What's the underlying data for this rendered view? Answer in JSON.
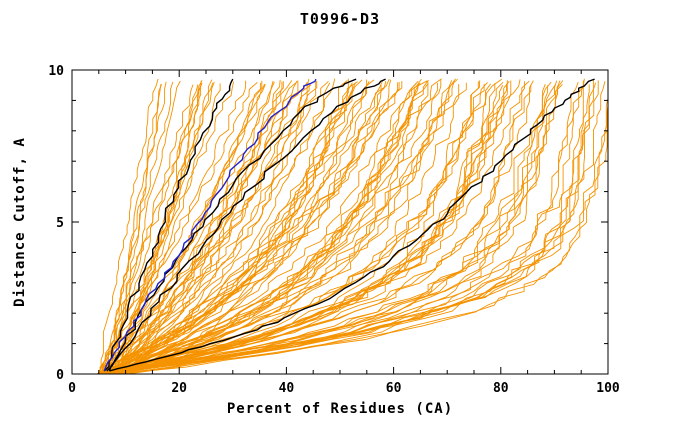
{
  "page": {
    "background": "#ffffff"
  },
  "chart_data": {
    "type": "line",
    "title": "T0996-D3",
    "xlabel": "Percent of Residues (CA)",
    "ylabel": "Distance Cutoff, A",
    "xlim": [
      0,
      100
    ],
    "ylim": [
      0,
      10
    ],
    "x_major_ticks": [
      0,
      20,
      40,
      60,
      80,
      100
    ],
    "x_minor_step": 5,
    "y_major_ticks": [
      0,
      5,
      10
    ],
    "y_minor_step": 1,
    "grid": false,
    "legend": "none",
    "frame_color": "#000000",
    "series_groups": {
      "orange_models": {
        "name": "predicted-model-curves",
        "color": "#f59300",
        "count": 115,
        "seed": 42,
        "x_start_range": [
          4.5,
          9
        ],
        "x_top_range": [
          13,
          100
        ],
        "y_top": 9.7
      },
      "black_models": {
        "name": "highlighted-black-curves",
        "color": "#000000",
        "curves": [
          {
            "points": [
              [
                6,
                0.1
              ],
              [
                7.5,
                0.7
              ],
              [
                9,
                1.4
              ],
              [
                11,
                2.3
              ],
              [
                13,
                3.2
              ],
              [
                15,
                4.1
              ],
              [
                17,
                5.0
              ],
              [
                19,
                5.9
              ],
              [
                21.5,
                6.8
              ],
              [
                24,
                7.7
              ],
              [
                26.5,
                8.6
              ],
              [
                28.5,
                9.2
              ],
              [
                30,
                9.7
              ]
            ]
          },
          {
            "points": [
              [
                6.5,
                0.1
              ],
              [
                9,
                0.8
              ],
              [
                12,
                1.7
              ],
              [
                15,
                2.6
              ],
              [
                18.5,
                3.5
              ],
              [
                22,
                4.4
              ],
              [
                26,
                5.3
              ],
              [
                30,
                6.2
              ],
              [
                34.5,
                7.1
              ],
              [
                39,
                8.0
              ],
              [
                44,
                8.8
              ],
              [
                49,
                9.4
              ],
              [
                53,
                9.7
              ]
            ]
          },
          {
            "points": [
              [
                7,
                0.1
              ],
              [
                10,
                0.8
              ],
              [
                13.5,
                1.7
              ],
              [
                17,
                2.6
              ],
              [
                21,
                3.5
              ],
              [
                25,
                4.4
              ],
              [
                29.5,
                5.3
              ],
              [
                34,
                6.2
              ],
              [
                39,
                7.1
              ],
              [
                44.5,
                8.0
              ],
              [
                50,
                8.8
              ],
              [
                55,
                9.4
              ],
              [
                58.5,
                9.7
              ]
            ]
          },
          {
            "points": [
              [
                7,
                0.1
              ],
              [
                14,
                0.4
              ],
              [
                22,
                0.8
              ],
              [
                30,
                1.2
              ],
              [
                38,
                1.7
              ],
              [
                46,
                2.3
              ],
              [
                53,
                3.0
              ],
              [
                59,
                3.7
              ],
              [
                64,
                4.4
              ],
              [
                69,
                5.1
              ],
              [
                73,
                5.8
              ],
              [
                77,
                6.5
              ],
              [
                81,
                7.2
              ],
              [
                85,
                7.9
              ],
              [
                88.5,
                8.5
              ],
              [
                92,
                9.0
              ],
              [
                95,
                9.4
              ],
              [
                97.5,
                9.7
              ]
            ]
          }
        ]
      },
      "blue_model": {
        "name": "highlighted-blue-curve",
        "color": "#2222cc",
        "points": [
          [
            6,
            0.1
          ],
          [
            8,
            0.7
          ],
          [
            10.5,
            1.4
          ],
          [
            13,
            2.1
          ],
          [
            15.5,
            2.8
          ],
          [
            18,
            3.5
          ],
          [
            21,
            4.3
          ],
          [
            24,
            5.1
          ],
          [
            27,
            5.9
          ],
          [
            30,
            6.7
          ],
          [
            33,
            7.4
          ],
          [
            36,
            8.1
          ],
          [
            39.5,
            8.8
          ],
          [
            43,
            9.4
          ],
          [
            45.5,
            9.7
          ]
        ]
      }
    }
  }
}
